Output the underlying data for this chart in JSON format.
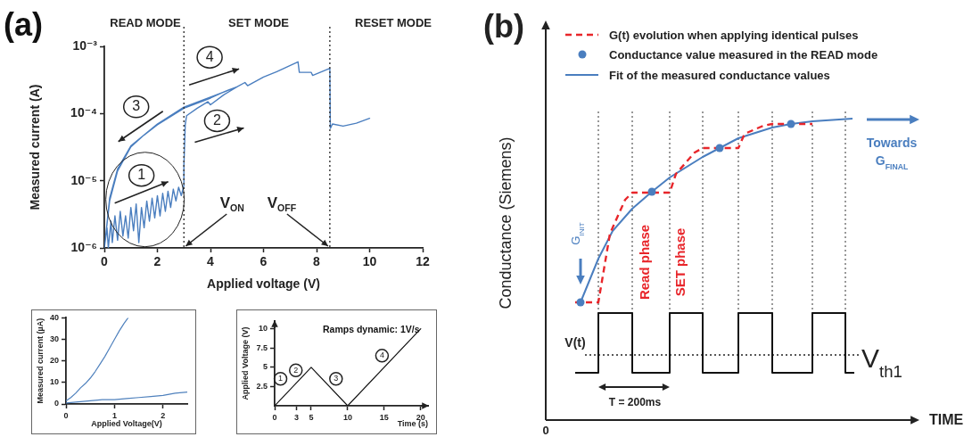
{
  "chart_data": [
    {
      "type": "line",
      "title": "(a)",
      "xlabel": "Applied voltage (V)",
      "ylabel": "Measured current (A)",
      "log": "y",
      "xlim": [
        0,
        12
      ],
      "xticks": [
        0,
        2,
        4,
        6,
        8,
        10,
        12
      ],
      "ylim": [
        1e-06,
        0.001
      ],
      "yticks": [
        {
          "value": 1e-06,
          "label": "10⁻⁶"
        },
        {
          "value": 1e-05,
          "label": "10⁻⁵"
        },
        {
          "value": 0.0001,
          "label": "10⁻⁴"
        },
        {
          "value": 0.001,
          "label": "10⁻³"
        }
      ],
      "series": [
        {
          "color": "#4a7ebf",
          "x": [
            0,
            0.1,
            0.15,
            0.25,
            0.3,
            0.4,
            0.5,
            0.6,
            0.7,
            0.8,
            0.9,
            1.0,
            1.1,
            1.2,
            1.3,
            1.4,
            1.5,
            1.6,
            1.7,
            1.8,
            1.9,
            2.0,
            2.1,
            2.2,
            2.3,
            2.4,
            2.5,
            2.6,
            2.7,
            2.8,
            2.9,
            3.0,
            3.0,
            3.05,
            3.1,
            3.5,
            3.9,
            4.0,
            4.5,
            5.0,
            4.5,
            4.0,
            3.0,
            2.0,
            1.5,
            1.0,
            0.5,
            0.2,
            0.05,
            0.2,
            0.5,
            1.0,
            2.0,
            3.0,
            4.0,
            5.0,
            5.3,
            5.4,
            6.0,
            6.5,
            7.3,
            7.35,
            7.8,
            7.85,
            8.5,
            8.52,
            8.6,
            9.0,
            9.5,
            10.0
          ],
          "values": [
            1e-06,
            2e-06,
            1e-06,
            2.5e-06,
            1.2e-06,
            3e-06,
            1.3e-06,
            3.5e-06,
            1.5e-06,
            3e-06,
            1.4e-06,
            4e-06,
            1.8e-06,
            4.5e-06,
            1.2e-06,
            4e-06,
            2e-06,
            5e-06,
            2.5e-06,
            5.5e-06,
            2.8e-06,
            6e-06,
            3e-06,
            6.5e-06,
            3.5e-06,
            7e-06,
            4e-06,
            7.5e-06,
            5e-06,
            8e-06,
            6e-06,
            8.5e-06,
            1.7e-05,
            6.8e-05,
            9.3e-05,
            0.00012,
            0.00015,
            0.000135,
            0.00019,
            0.00025,
            0.00021,
            0.00017,
            0.00012,
            6.8e-05,
            4.8e-05,
            3.2e-05,
            1.4e-05,
            5e-06,
            1.5e-06,
            5.5e-06,
            1.5e-05,
            3.3e-05,
            7e-05,
            0.000125,
            0.000175,
            0.00025,
            0.00029,
            0.00026,
            0.00035,
            0.00042,
            0.00059,
            0.00041,
            0.00041,
            0.00037,
            0.00047,
            6e-05,
            7e-05,
            6.5e-05,
            7.2e-05,
            8.5e-05
          ]
        }
      ],
      "ref_lines": [
        {
          "axis": "x",
          "value": 3,
          "label": "V$_{ON}$",
          "line_style": "dotted",
          "color": "#333333"
        },
        {
          "axis": "x",
          "value": 8.5,
          "label": "V$_{OFF}$",
          "line_style": "dotted",
          "color": "#333333"
        }
      ],
      "annotations": [
        "READ MODE",
        "SET MODE",
        "RESET MODE",
        {
          "text": "1",
          "x": 1.4,
          "y": 1.2e-05
        },
        {
          "text": "2",
          "x": 4.25,
          "y": 7.8e-05
        },
        {
          "text": "3",
          "x": 1.2,
          "y": 0.000126
        },
        {
          "text": "4",
          "x": 3.97,
          "y": 0.00069
        }
      ]
    },
    {
      "type": "line",
      "xlabel": "Applied Voltage(V)",
      "ylabel": "Measured current (µA)",
      "xlim": [
        0,
        2.5
      ],
      "xticks": [
        0,
        1,
        2
      ],
      "ylim": [
        0,
        40
      ],
      "yticks": [
        0,
        10,
        20,
        30,
        40
      ],
      "series": [
        {
          "color": "#4f81bd",
          "x": [
            0,
            0.1,
            0.2,
            0.3,
            0.4,
            0.5,
            0.6,
            0.7,
            0.8,
            0.9,
            1,
            1.1,
            1.2,
            1.28
          ],
          "values": [
            1.5,
            3,
            5,
            7.5,
            9.5,
            12,
            15,
            18.5,
            22,
            26,
            30,
            34,
            37.5,
            40
          ]
        },
        {
          "color": "#4f81bd",
          "x": [
            0,
            0.25,
            0.5,
            0.75,
            1,
            1.25,
            1.5,
            1.75,
            2,
            2.25,
            2.5
          ],
          "values": [
            0.5,
            1,
            1.5,
            2,
            2,
            2.5,
            3,
            3.5,
            4,
            5,
            5.5
          ]
        }
      ]
    },
    {
      "type": "line",
      "title": "Ramps dynamic: 1V/s",
      "xlabel": "Time (s)",
      "ylabel": "Applied Voltage (V)",
      "x": [
        0,
        5,
        10,
        20
      ],
      "values": [
        0,
        5,
        0,
        10
      ],
      "color": "#111111",
      "xlim": [
        0,
        21
      ],
      "xticks": [
        0,
        3,
        5,
        10,
        15,
        20
      ],
      "ylim": [
        0,
        11
      ],
      "yticks": [
        2.5,
        5,
        7.5,
        10
      ],
      "annotations": [
        {
          "text": "1",
          "x": 0.8,
          "y": 3.5
        },
        {
          "text": "2",
          "x": 2.9,
          "y": 4.6
        },
        {
          "text": "3",
          "x": 8.4,
          "y": 3.5
        },
        {
          "text": "4",
          "x": 14.7,
          "y": 6.5
        }
      ]
    },
    {
      "type": "other",
      "title": "(b)",
      "xlabel": "TIME",
      "ylabel": "Conductance (Siemens)",
      "annotations": [
        "G(t) evolution when applying identical pulses",
        "Conductance value measured in the READ mode",
        "Fit of the measured conductance values",
        "Read phase",
        "SET phase",
        "Towards G$_{FINAL}$",
        "G$_{INIT}$",
        "V(t)",
        "V$_{th1}$",
        "T = 200ms",
        "0"
      ]
    }
  ]
}
